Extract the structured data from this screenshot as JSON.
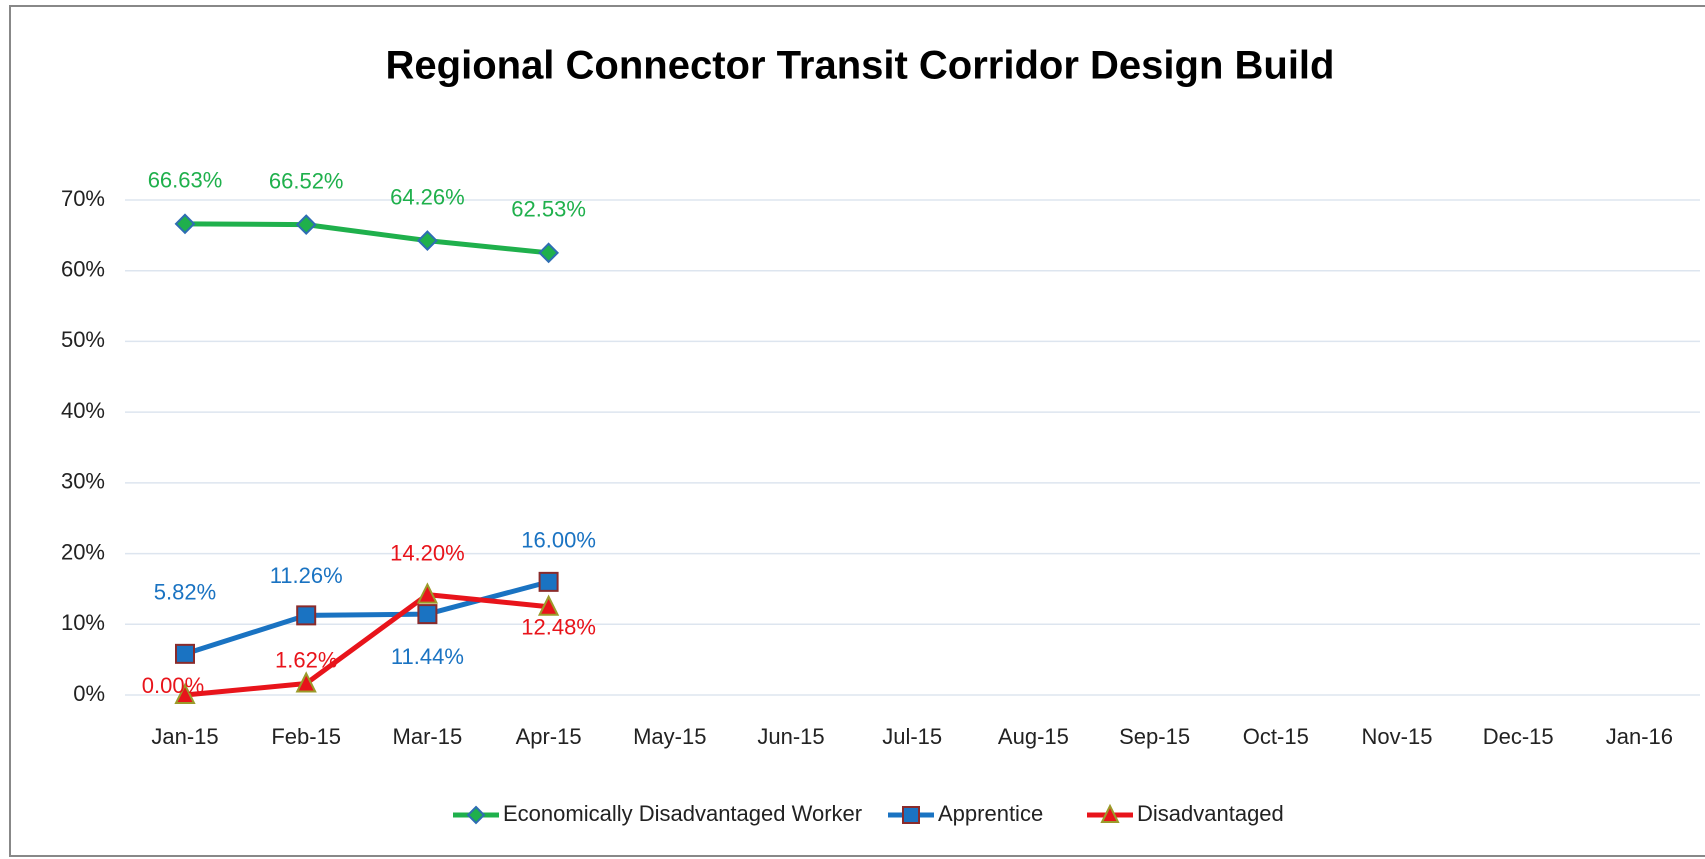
{
  "chart_data": {
    "type": "line",
    "title": "Regional Connector Transit Corridor Design Build",
    "categories": [
      "Jan-15",
      "Feb-15",
      "Mar-15",
      "Apr-15",
      "May-15",
      "Jun-15",
      "Jul-15",
      "Aug-15",
      "Sep-15",
      "Oct-15",
      "Nov-15",
      "Dec-15",
      "Jan-16"
    ],
    "series": [
      {
        "name": "Economically Disadvantaged Worker",
        "color": "#1fb04c",
        "marker": "diamond",
        "values": [
          66.63,
          66.52,
          64.26,
          62.53,
          null,
          null,
          null,
          null,
          null,
          null,
          null,
          null,
          null
        ],
        "value_labels": [
          "66.63%",
          "66.52%",
          "64.26%",
          "62.53%",
          null,
          null,
          null,
          null,
          null,
          null,
          null,
          null,
          null
        ]
      },
      {
        "name": "Apprentice",
        "color": "#1a73c2",
        "marker": "square",
        "values": [
          5.82,
          11.26,
          11.44,
          16.0,
          null,
          null,
          null,
          null,
          null,
          null,
          null,
          null,
          null
        ],
        "value_labels": [
          "5.82%",
          "11.26%",
          "11.44%",
          "16.00%",
          null,
          null,
          null,
          null,
          null,
          null,
          null,
          null,
          null
        ]
      },
      {
        "name": "Disadvantaged",
        "color": "#e8141b",
        "marker": "triangle",
        "values": [
          0.0,
          1.62,
          14.2,
          12.48,
          null,
          null,
          null,
          null,
          null,
          null,
          null,
          null,
          null
        ],
        "value_labels": [
          "0.00%",
          "1.62%",
          "14.20%",
          "12.48%",
          null,
          null,
          null,
          null,
          null,
          null,
          null,
          null,
          null
        ]
      }
    ],
    "ylim": [
      0,
      70
    ],
    "yticks": [
      {
        "value": 0,
        "label": "0%"
      },
      {
        "value": 10,
        "label": "10%"
      },
      {
        "value": 20,
        "label": "20%"
      },
      {
        "value": 30,
        "label": "30%"
      },
      {
        "value": 40,
        "label": "40%"
      },
      {
        "value": 50,
        "label": "50%"
      },
      {
        "value": 60,
        "label": "60%"
      },
      {
        "value": 70,
        "label": "70%"
      }
    ],
    "grid": true,
    "legend": "bottom"
  }
}
